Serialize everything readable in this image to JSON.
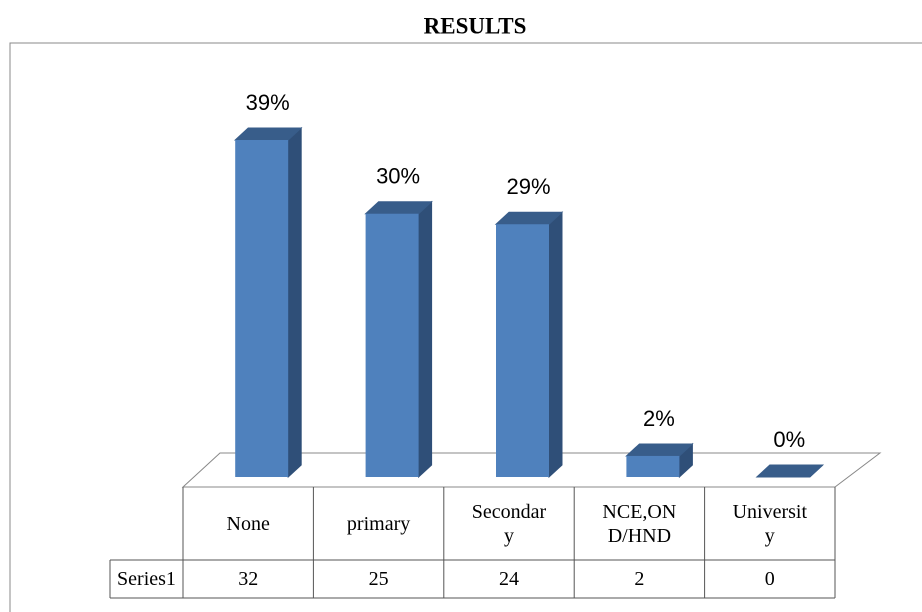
{
  "chart_data": {
    "type": "bar3d",
    "title": "RESULTS",
    "categories": [
      "None",
      "primary",
      "Secondary",
      "NCE,OND/HND",
      "University"
    ],
    "series": [
      {
        "name": "Series1",
        "color": "#4f81bd",
        "values": [
          32,
          25,
          24,
          2,
          0
        ]
      }
    ],
    "percentages": [
      39,
      30,
      29,
      2,
      0
    ],
    "percentage_labels": [
      "39%",
      "30%",
      "29%",
      "2%",
      "0%"
    ]
  }
}
